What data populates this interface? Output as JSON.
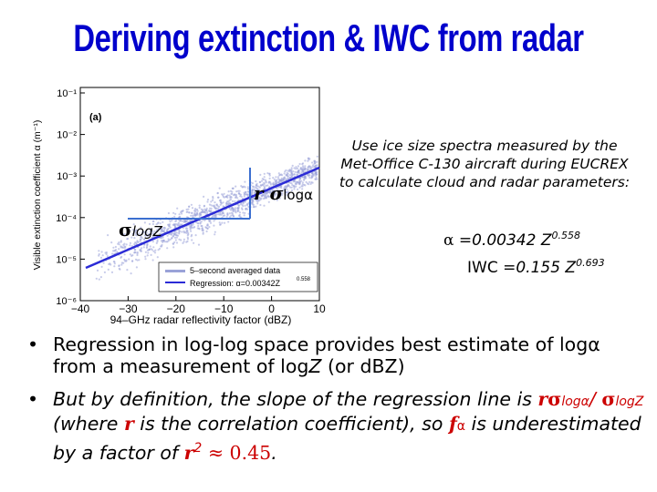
{
  "title": "Deriving extinction & IWC from radar",
  "figure": {
    "panel_label": "(a)",
    "ylabel": "Visible extinction coefficient α (m⁻¹)",
    "xlabel": "94–GHz radar reflectivity factor (dBZ)",
    "y_ticks": [
      "10⁻¹",
      "10⁻²",
      "10⁻³",
      "10⁻⁴",
      "10⁻⁵",
      "10⁻⁶"
    ],
    "x_ticks": [
      "−40",
      "−30",
      "−20",
      "−10",
      "0",
      "10"
    ],
    "legend": {
      "scatter_label": "5–second averaged data",
      "line_label": "Regression: α=0.00342Z",
      "line_exp": "0.558"
    },
    "colors": {
      "scatter": "#9aa2d8",
      "regression": "#2b2bd6",
      "triangle": "#3b6fd0"
    }
  },
  "annotations": {
    "r_sigma": "r σ",
    "r_sigma_sub": "logα",
    "sigma_z": "σ",
    "sigma_z_sub": "logZ"
  },
  "note": "Use ice size spectra measured by the Met-Office C-130 aircraft during EUCREX to calculate cloud and radar parameters:",
  "eq1": {
    "lhs": "α",
    "rhs": " =0.00342 Z",
    "exp": "0.558"
  },
  "eq2": {
    "lhs": "IWC",
    "rhs": " =0.155 Z",
    "exp": "0.693"
  },
  "bullet1": {
    "dot": "•",
    "t1": "Regression in log-log space provides best estimate of ",
    "log_alpha": "logα",
    "t2": " from a measurement of ",
    "log_z": "log",
    "log_z_var": "Z",
    "t3": " (or d",
    "t3b": "BZ",
    "t4": ")"
  },
  "bullet2": {
    "dot": "•",
    "t1": "But by definition, the slope of the regression line is ",
    "r": "r",
    "sig1": "σ",
    "sig1_sub": "logα",
    "slash": "/ ",
    "sig2": "σ",
    "sig2_sub": "logZ",
    "t2": " (where ",
    "r2": "r",
    "t3": " is the correlation coefficient), so ",
    "f": "f",
    "f_sub": "α",
    "t4": " is underestimated by a factor of ",
    "r3": "r",
    "r3_exp": "2",
    "approx": " ≈ 0.45",
    "end": "."
  }
}
